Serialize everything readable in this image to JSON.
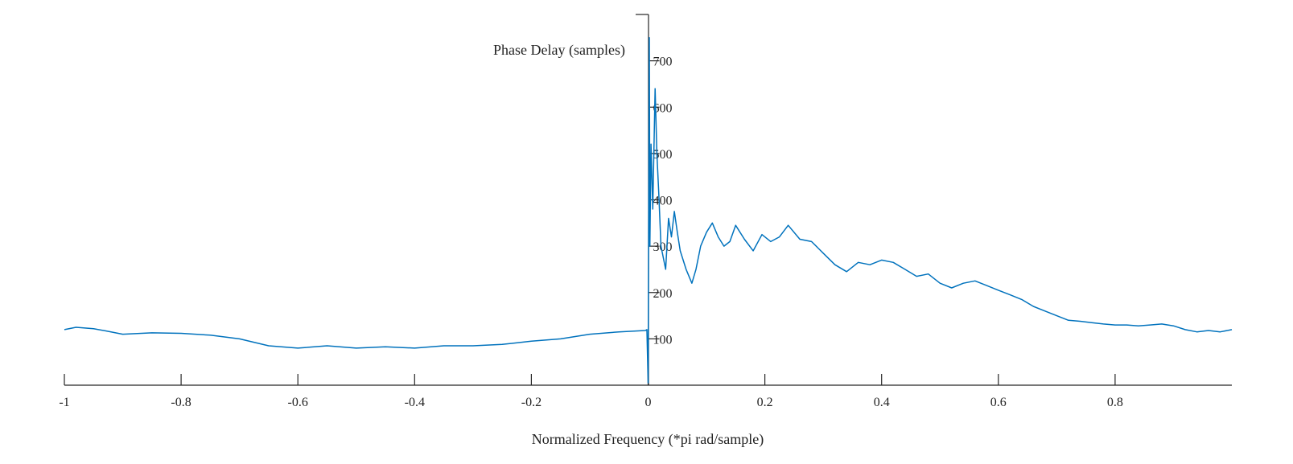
{
  "chart_data": {
    "type": "line",
    "xlabel": "Normalized Frequency (*pi rad/sample)",
    "ylabel": "Phase Delay (samples)",
    "xlim": [
      -1,
      1
    ],
    "ylim": [
      0,
      800
    ],
    "x_ticks": [
      -1,
      -0.8,
      -0.6,
      -0.4,
      -0.2,
      0,
      0.2,
      0.4,
      0.6,
      0.8
    ],
    "x_tick_labels": [
      "-1",
      "-0.8",
      "-0.6",
      "-0.4",
      "-0.2",
      "0",
      "0.2",
      "0.4",
      "0.6",
      "0.8"
    ],
    "y_ticks": [
      100,
      200,
      300,
      400,
      500,
      600,
      700
    ],
    "y_tick_labels": [
      "100",
      "200",
      "300",
      "400",
      "500",
      "600",
      "700"
    ],
    "grid": false,
    "series": [
      {
        "color": "#0072BD",
        "x": [
          -1.0,
          -0.98,
          -0.95,
          -0.92,
          -0.9,
          -0.85,
          -0.8,
          -0.75,
          -0.7,
          -0.65,
          -0.6,
          -0.55,
          -0.5,
          -0.45,
          -0.4,
          -0.35,
          -0.3,
          -0.25,
          -0.2,
          -0.15,
          -0.1,
          -0.05,
          -0.005,
          -0.002,
          0.0,
          0.002,
          0.003,
          0.005,
          0.008,
          0.012,
          0.015,
          0.018,
          0.022,
          0.03,
          0.035,
          0.04,
          0.045,
          0.05,
          0.055,
          0.065,
          0.075,
          0.082,
          0.09,
          0.1,
          0.11,
          0.12,
          0.13,
          0.14,
          0.15,
          0.165,
          0.18,
          0.195,
          0.21,
          0.225,
          0.24,
          0.26,
          0.28,
          0.3,
          0.32,
          0.34,
          0.36,
          0.38,
          0.4,
          0.42,
          0.44,
          0.46,
          0.48,
          0.5,
          0.52,
          0.54,
          0.56,
          0.58,
          0.6,
          0.62,
          0.64,
          0.66,
          0.68,
          0.7,
          0.72,
          0.74,
          0.76,
          0.78,
          0.8,
          0.82,
          0.84,
          0.86,
          0.88,
          0.9,
          0.92,
          0.94,
          0.96,
          0.98,
          1.0
        ],
        "y": [
          120,
          125,
          122,
          115,
          110,
          113,
          112,
          108,
          100,
          85,
          80,
          85,
          80,
          83,
          80,
          85,
          85,
          88,
          95,
          100,
          110,
          115,
          118,
          120,
          5,
          750,
          300,
          520,
          380,
          640,
          500,
          420,
          300,
          250,
          360,
          320,
          375,
          330,
          290,
          250,
          220,
          250,
          300,
          330,
          350,
          320,
          300,
          310,
          345,
          315,
          290,
          325,
          310,
          320,
          345,
          315,
          310,
          285,
          260,
          245,
          265,
          260,
          270,
          265,
          250,
          235,
          240,
          220,
          210,
          220,
          225,
          215,
          205,
          195,
          185,
          170,
          160,
          150,
          140,
          138,
          135,
          132,
          130,
          130,
          128,
          130,
          132,
          128,
          120,
          115,
          118,
          115,
          120
        ]
      }
    ]
  }
}
